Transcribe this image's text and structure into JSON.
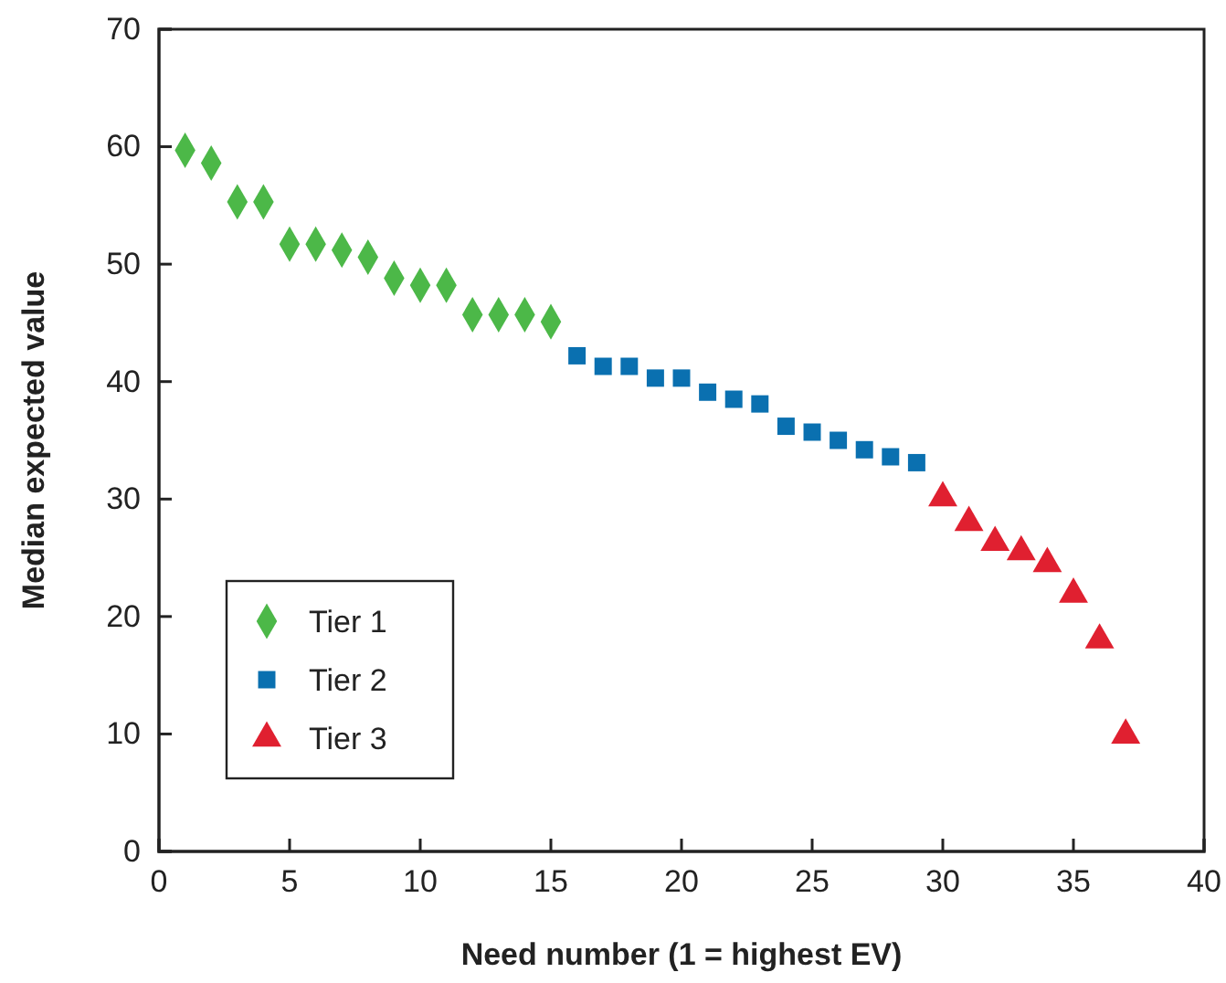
{
  "chart_data": {
    "type": "scatter",
    "xlabel": "Need number (1 = highest EV)",
    "ylabel": "Median expected value",
    "xlim": [
      0,
      40
    ],
    "xticks": [
      0,
      5,
      10,
      15,
      20,
      25,
      30,
      35,
      40
    ],
    "ylim": [
      0,
      70
    ],
    "yticks": [
      0,
      10,
      20,
      30,
      40,
      50,
      60,
      70
    ],
    "grid": false,
    "legend": "bottom left",
    "series": [
      {
        "name": "Tier 1",
        "color": "#4cb848",
        "marker": "diamond",
        "x": [
          1,
          2,
          3,
          4,
          5,
          6,
          7,
          8,
          9,
          10,
          11,
          12,
          13,
          14,
          15
        ],
        "values": [
          59.7,
          58.6,
          55.3,
          55.3,
          51.7,
          51.7,
          51.2,
          50.6,
          48.8,
          48.2,
          48.2,
          45.7,
          45.7,
          45.7,
          45.1
        ]
      },
      {
        "name": "Tier 2",
        "color": "#0a70b0",
        "marker": "square",
        "x": [
          16,
          17,
          18,
          19,
          20,
          21,
          22,
          23,
          24,
          25,
          26,
          27,
          28,
          29
        ],
        "values": [
          42.2,
          41.3,
          41.3,
          40.3,
          40.3,
          39.1,
          38.5,
          38.1,
          36.2,
          35.7,
          35.0,
          34.2,
          33.6,
          33.1
        ]
      },
      {
        "name": "Tier 3",
        "color": "#e02030",
        "marker": "triangle",
        "x": [
          30,
          31,
          32,
          33,
          34,
          35,
          36,
          37
        ],
        "values": [
          30.1,
          28.0,
          26.3,
          25.5,
          24.5,
          21.9,
          18.0,
          9.9
        ]
      }
    ]
  }
}
